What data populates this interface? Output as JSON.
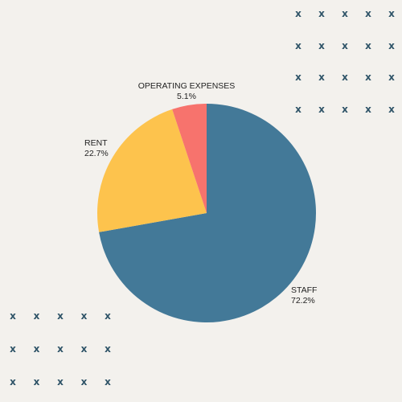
{
  "chart_data": {
    "type": "pie",
    "slices": [
      {
        "label": "STAFF",
        "value": 72.2,
        "value_label": "72.2%",
        "color": "#437998"
      },
      {
        "label": "RENT",
        "value": 22.7,
        "value_label": "22.7%",
        "color": "#fdc34d"
      },
      {
        "label": "OPERATING EXPENSES",
        "value": 5.1,
        "value_label": "5.1%",
        "color": "#f7736d"
      }
    ],
    "start_angle_deg": 0,
    "direction": "clockwise",
    "legend": "none"
  },
  "decoration": {
    "pattern_icon": "x-mark-icon",
    "pattern_glyph": "x",
    "pattern_color": "#2f5468",
    "top_right_grid": {
      "rows": 4,
      "cols": 5
    },
    "bottom_left_grid": {
      "rows": 3,
      "cols": 5
    }
  }
}
